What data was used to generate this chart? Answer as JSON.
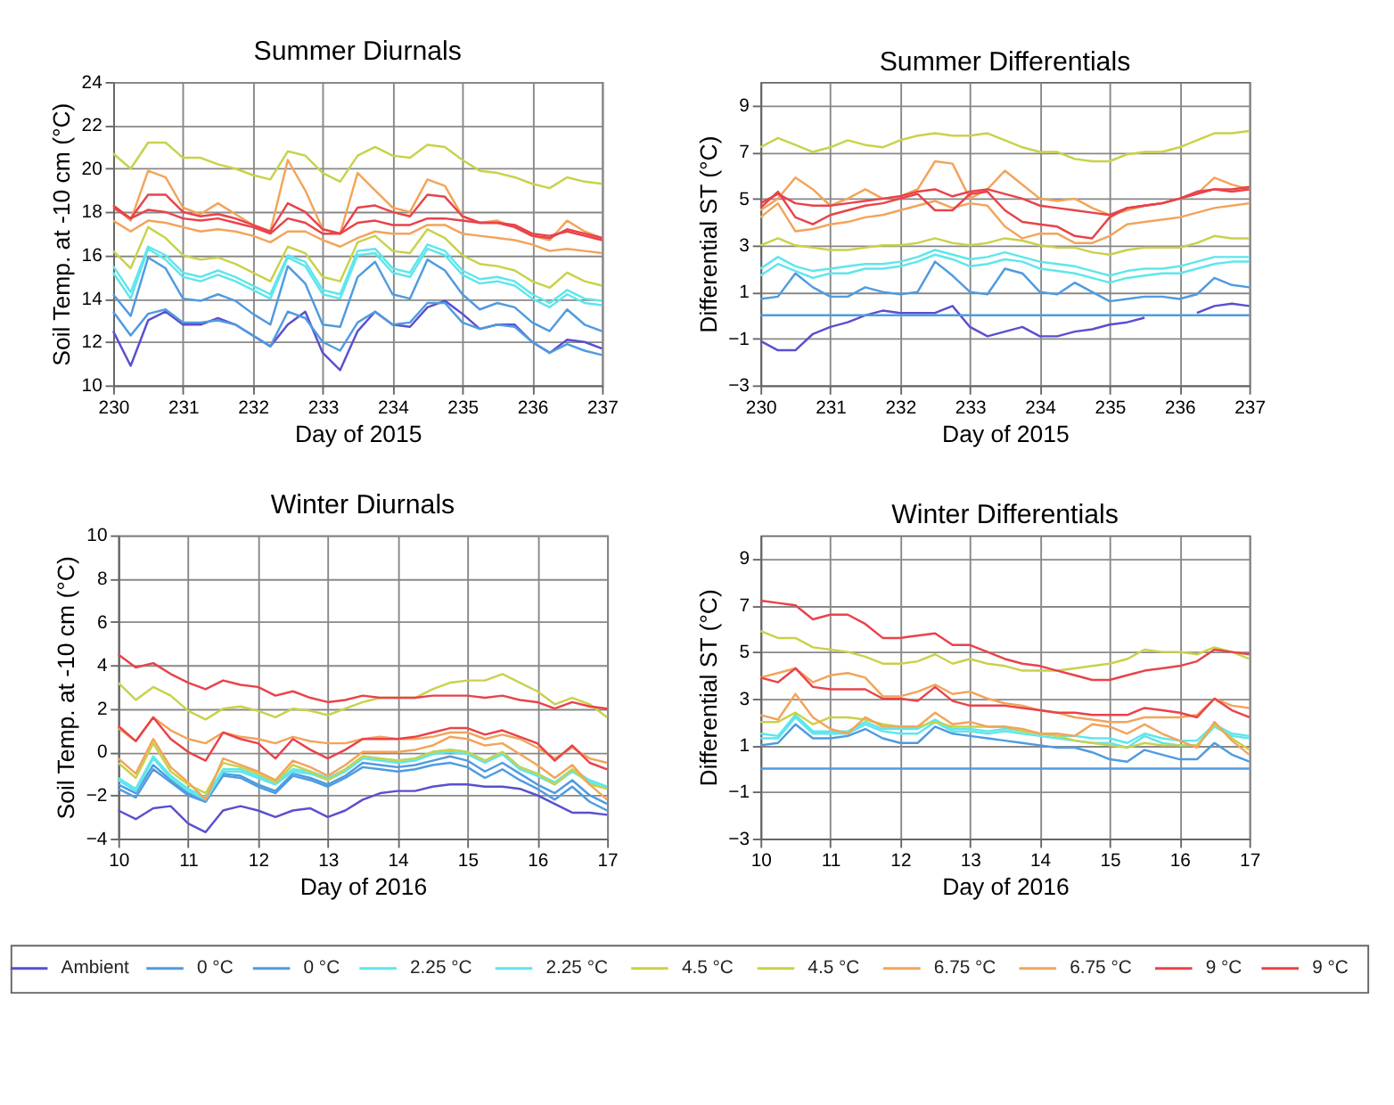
{
  "chart_data": [
    {
      "type": "line",
      "title": "Summer Diurnals",
      "xlabel": "Day of 2015",
      "ylabel": "Soil Temp. at -10 cm (°C)",
      "x": [
        230,
        230.25,
        230.5,
        230.75,
        231,
        231.25,
        231.5,
        231.75,
        232,
        232.25,
        232.5,
        232.75,
        233,
        233.25,
        233.5,
        233.75,
        234,
        234.25,
        234.5,
        234.75,
        235,
        235.25,
        235.5,
        235.75,
        236,
        236.25,
        236.5,
        236.75,
        237
      ],
      "xlim": [
        230,
        237
      ],
      "xticks": [
        230,
        231,
        232,
        233,
        234,
        235,
        236,
        237
      ],
      "ylim": [
        10,
        24
      ],
      "yticks": [
        10,
        12,
        14,
        16,
        18,
        20,
        22,
        24
      ],
      "grid": true,
      "legend": "bottom",
      "series": [
        {
          "name": "Ambient",
          "color": "#5a4fcf",
          "values": [
            12.5,
            10.9,
            13.0,
            13.4,
            12.8,
            12.8,
            13.1,
            12.8,
            12.3,
            11.8,
            12.8,
            13.4,
            11.5,
            10.7,
            12.5,
            13.4,
            12.8,
            12.7,
            13.6,
            13.9,
            13.3,
            12.6,
            12.8,
            12.8,
            12.0,
            11.5,
            12.1,
            12.0,
            11.7
          ]
        },
        {
          "name": "0 °C",
          "color": "#4f9be0",
          "values": [
            13.4,
            12.3,
            13.3,
            13.5,
            12.9,
            12.9,
            13.0,
            12.8,
            12.3,
            11.8,
            13.4,
            13.1,
            12.0,
            11.6,
            12.9,
            13.4,
            12.8,
            12.9,
            13.8,
            13.8,
            12.9,
            12.6,
            12.8,
            12.7,
            12.0,
            11.5,
            11.9,
            11.6,
            11.4
          ]
        },
        {
          "name": "0 °C",
          "color": "#4f9be0",
          "values": [
            14.2,
            13.2,
            15.9,
            15.4,
            14.0,
            13.9,
            14.2,
            13.9,
            13.3,
            12.8,
            15.5,
            14.7,
            12.8,
            12.7,
            15.0,
            15.7,
            14.2,
            14.0,
            15.8,
            15.3,
            14.2,
            13.5,
            13.8,
            13.6,
            12.9,
            12.5,
            13.5,
            12.8,
            12.5
          ]
        },
        {
          "name": "2.25 °C",
          "color": "#5ee6ec",
          "values": [
            15.2,
            14.0,
            16.3,
            15.8,
            15.0,
            14.8,
            15.1,
            14.8,
            14.4,
            14.0,
            15.9,
            15.5,
            14.2,
            14.0,
            16.0,
            16.1,
            15.2,
            15.0,
            16.3,
            16.0,
            15.1,
            14.7,
            14.8,
            14.6,
            14.0,
            13.6,
            14.2,
            13.8,
            13.7
          ]
        },
        {
          "name": "2.25 °C",
          "color": "#5ee6ec",
          "values": [
            15.5,
            14.3,
            16.4,
            16.0,
            15.2,
            15.0,
            15.3,
            15.0,
            14.6,
            14.2,
            16.0,
            15.7,
            14.4,
            14.2,
            16.2,
            16.3,
            15.4,
            15.2,
            16.5,
            16.2,
            15.3,
            14.9,
            15.0,
            14.8,
            14.2,
            13.8,
            14.4,
            14.0,
            13.9
          ]
        },
        {
          "name": "4.5 °C",
          "color": "#c8d24a",
          "values": [
            16.2,
            15.4,
            17.3,
            16.8,
            16.0,
            15.8,
            15.9,
            15.6,
            15.2,
            14.8,
            16.4,
            16.1,
            15.0,
            14.8,
            16.6,
            16.9,
            16.2,
            16.1,
            17.2,
            16.8,
            16.0,
            15.6,
            15.5,
            15.3,
            14.8,
            14.5,
            15.2,
            14.8,
            14.6
          ]
        },
        {
          "name": "4.5 °C",
          "color": "#c8d24a",
          "values": [
            20.7,
            20.0,
            21.2,
            21.2,
            20.5,
            20.5,
            20.2,
            20.0,
            19.7,
            19.5,
            20.8,
            20.6,
            19.8,
            19.4,
            20.6,
            21.0,
            20.6,
            20.5,
            21.1,
            21.0,
            20.4,
            19.9,
            19.8,
            19.6,
            19.3,
            19.1,
            19.6,
            19.4,
            19.3
          ]
        },
        {
          "name": "6.75 °C",
          "color": "#f2a45a",
          "values": [
            17.6,
            17.1,
            17.6,
            17.5,
            17.3,
            17.1,
            17.2,
            17.1,
            16.9,
            16.6,
            17.1,
            17.1,
            16.7,
            16.4,
            16.8,
            17.1,
            17.0,
            17.0,
            17.4,
            17.4,
            17.0,
            16.9,
            16.8,
            16.7,
            16.5,
            16.2,
            16.3,
            16.2,
            16.1
          ]
        },
        {
          "name": "6.75 °C",
          "color": "#f2a45a",
          "values": [
            18.3,
            17.6,
            19.9,
            19.6,
            18.2,
            17.9,
            18.4,
            17.9,
            17.4,
            17.1,
            20.4,
            19.0,
            17.2,
            17.0,
            19.8,
            19.0,
            18.2,
            18.0,
            19.5,
            19.2,
            17.8,
            17.5,
            17.6,
            17.3,
            16.9,
            16.7,
            17.6,
            17.1,
            16.8
          ]
        },
        {
          "name": "9 °C",
          "color": "#e8434a",
          "values": [
            18.3,
            17.7,
            18.8,
            18.8,
            18.0,
            17.8,
            17.9,
            17.7,
            17.4,
            17.1,
            18.4,
            18.0,
            17.2,
            17.0,
            18.2,
            18.3,
            18.0,
            17.8,
            18.8,
            18.7,
            17.8,
            17.5,
            17.5,
            17.3,
            16.9,
            16.8,
            17.2,
            17.0,
            16.8
          ]
        },
        {
          "name": "9 °C",
          "color": "#e8434a",
          "values": [
            18.2,
            17.7,
            18.1,
            18.0,
            17.7,
            17.6,
            17.7,
            17.5,
            17.3,
            17.0,
            17.7,
            17.5,
            17.0,
            17.0,
            17.5,
            17.6,
            17.4,
            17.4,
            17.7,
            17.7,
            17.6,
            17.5,
            17.5,
            17.4,
            17.0,
            16.9,
            17.1,
            16.9,
            16.7
          ]
        }
      ]
    },
    {
      "type": "line",
      "title": "Summer Differentials",
      "xlabel": "Day of 2015",
      "ylabel": "Differential ST (°C)",
      "x": [
        230,
        230.25,
        230.5,
        230.75,
        231,
        231.25,
        231.5,
        231.75,
        232,
        232.25,
        232.5,
        232.75,
        233,
        233.25,
        233.5,
        233.75,
        234,
        234.25,
        234.5,
        234.75,
        235,
        235.25,
        235.5,
        235.75,
        236,
        236.25,
        236.5,
        236.75,
        237
      ],
      "xlim": [
        230,
        237
      ],
      "xticks": [
        230,
        231,
        232,
        233,
        234,
        235,
        236,
        237
      ],
      "ylim": [
        -3,
        10
      ],
      "yticks": [
        -3,
        -1,
        1,
        3,
        5,
        7,
        9
      ],
      "grid": true,
      "series": [
        {
          "color": "#5a4fcf",
          "values": [
            -1.1,
            -1.5,
            -1.5,
            -0.8,
            -0.5,
            -0.3,
            0.0,
            0.2,
            0.1,
            0.1,
            0.1,
            0.4,
            -0.5,
            -0.9,
            -0.7,
            -0.5,
            -0.9,
            -0.9,
            -0.7,
            -0.6,
            -0.4,
            -0.3,
            -0.1,
            null,
            null,
            0.1,
            0.4,
            0.5,
            0.4
          ]
        },
        {
          "color": "#4f9be0",
          "values": [
            0,
            0,
            0,
            0,
            0,
            0,
            0,
            0,
            0,
            0,
            0,
            0,
            0,
            0,
            0,
            0,
            0,
            0,
            0,
            0,
            0,
            0,
            0,
            0,
            0,
            0,
            0,
            0,
            0
          ]
        },
        {
          "color": "#4f9be0",
          "values": [
            0.7,
            0.8,
            1.8,
            1.2,
            0.8,
            0.8,
            1.2,
            1.0,
            0.9,
            1.0,
            2.3,
            1.7,
            1.0,
            0.9,
            2.0,
            1.8,
            1.0,
            0.9,
            1.4,
            1.0,
            0.6,
            0.7,
            0.8,
            0.8,
            0.7,
            0.9,
            1.6,
            1.3,
            1.2
          ]
        },
        {
          "color": "#5ee6ec",
          "values": [
            1.7,
            2.2,
            1.9,
            1.6,
            1.8,
            1.8,
            2.0,
            2.0,
            2.1,
            2.3,
            2.6,
            2.4,
            2.1,
            2.2,
            2.4,
            2.3,
            2.0,
            1.9,
            1.8,
            1.6,
            1.4,
            1.6,
            1.7,
            1.8,
            1.8,
            2.0,
            2.2,
            2.3,
            2.3
          ]
        },
        {
          "color": "#5ee6ec",
          "values": [
            2.0,
            2.5,
            2.1,
            1.9,
            2.0,
            2.1,
            2.2,
            2.2,
            2.3,
            2.5,
            2.8,
            2.6,
            2.4,
            2.5,
            2.7,
            2.5,
            2.3,
            2.2,
            2.1,
            1.9,
            1.7,
            1.9,
            2.0,
            2.0,
            2.1,
            2.3,
            2.5,
            2.5,
            2.5
          ]
        },
        {
          "color": "#c8d24a",
          "values": [
            3.0,
            3.3,
            3.0,
            2.9,
            2.8,
            2.8,
            2.9,
            3.0,
            3.0,
            3.1,
            3.3,
            3.1,
            3.0,
            3.1,
            3.3,
            3.2,
            3.0,
            2.9,
            2.9,
            2.7,
            2.6,
            2.8,
            2.9,
            2.9,
            2.9,
            3.1,
            3.4,
            3.3,
            3.3
          ]
        },
        {
          "color": "#c8d24a",
          "values": [
            7.2,
            7.6,
            7.3,
            7.0,
            7.2,
            7.5,
            7.3,
            7.2,
            7.5,
            7.7,
            7.8,
            7.7,
            7.7,
            7.8,
            7.5,
            7.2,
            7.0,
            7.0,
            6.7,
            6.6,
            6.6,
            6.9,
            7.0,
            7.0,
            7.2,
            7.5,
            7.8,
            7.8,
            7.9
          ]
        },
        {
          "color": "#f2a45a",
          "values": [
            4.2,
            4.8,
            3.6,
            3.7,
            3.9,
            4.0,
            4.2,
            4.3,
            4.5,
            4.7,
            4.9,
            4.6,
            4.8,
            4.7,
            3.8,
            3.3,
            3.5,
            3.5,
            3.1,
            3.1,
            3.4,
            3.9,
            4.0,
            4.1,
            4.2,
            4.4,
            4.6,
            4.7,
            4.8
          ]
        },
        {
          "color": "#f2a45a",
          "values": [
            4.5,
            5.0,
            5.9,
            5.4,
            4.7,
            5.0,
            5.4,
            5.0,
            5.1,
            5.4,
            6.6,
            6.5,
            5.0,
            5.4,
            6.2,
            5.6,
            5.0,
            4.9,
            5.0,
            4.6,
            4.3,
            4.5,
            4.7,
            4.8,
            5.0,
            5.2,
            5.9,
            5.6,
            5.4
          ]
        },
        {
          "color": "#e8434a",
          "values": [
            4.6,
            5.3,
            4.2,
            3.9,
            4.3,
            4.5,
            4.7,
            4.8,
            5.0,
            5.2,
            4.5,
            4.5,
            5.2,
            5.3,
            4.5,
            4.0,
            3.9,
            3.8,
            3.4,
            3.3,
            4.2,
            4.6,
            4.7,
            4.8,
            5.0,
            5.3,
            5.4,
            5.4,
            5.5
          ]
        },
        {
          "color": "#e8434a",
          "values": [
            4.8,
            5.2,
            4.8,
            4.7,
            4.7,
            4.8,
            4.9,
            5.0,
            5.1,
            5.3,
            5.4,
            5.1,
            5.3,
            5.4,
            5.2,
            5.0,
            4.7,
            4.6,
            4.5,
            4.4,
            4.3,
            4.6,
            4.7,
            4.8,
            5.0,
            5.2,
            5.4,
            5.3,
            5.4
          ]
        }
      ]
    },
    {
      "type": "line",
      "title": "Winter Diurnals",
      "xlabel": "Day of 2016",
      "ylabel": "Soil Temp. at -10 cm (°C)",
      "x": [
        10,
        10.25,
        10.5,
        10.75,
        11,
        11.25,
        11.5,
        11.75,
        12,
        12.25,
        12.5,
        12.75,
        13,
        13.25,
        13.5,
        13.75,
        14,
        14.25,
        14.5,
        14.75,
        15,
        15.25,
        15.5,
        15.75,
        16,
        16.25,
        16.5,
        16.75,
        17
      ],
      "xlim": [
        10,
        17
      ],
      "xticks": [
        10,
        11,
        12,
        13,
        14,
        15,
        16,
        17
      ],
      "ylim": [
        -4,
        10
      ],
      "yticks": [
        -4,
        -2,
        0,
        2,
        4,
        6,
        8,
        10
      ],
      "grid": true,
      "series": [
        {
          "color": "#5a4fcf",
          "values": [
            -2.7,
            -3.1,
            -2.6,
            -2.5,
            -3.3,
            -3.7,
            -2.7,
            -2.5,
            -2.7,
            -3.0,
            -2.7,
            -2.6,
            -3.0,
            -2.7,
            -2.2,
            -1.9,
            -1.8,
            -1.8,
            -1.6,
            -1.5,
            -1.5,
            -1.6,
            -1.6,
            -1.7,
            -2.0,
            -2.4,
            -2.8,
            -2.8,
            -2.9
          ]
        },
        {
          "color": "#4f9be0",
          "values": [
            -1.7,
            -2.1,
            -0.8,
            -1.4,
            -2.0,
            -2.3,
            -1.1,
            -1.2,
            -1.6,
            -1.9,
            -1.1,
            -1.3,
            -1.6,
            -1.2,
            -0.7,
            -0.8,
            -0.9,
            -0.8,
            -0.6,
            -0.5,
            -0.7,
            -1.2,
            -0.8,
            -1.3,
            -1.7,
            -2.2,
            -1.6,
            -2.3,
            -2.7
          ]
        },
        {
          "color": "#4f9be0",
          "values": [
            -1.5,
            -1.9,
            -0.6,
            -1.3,
            -1.9,
            -2.2,
            -1.0,
            -1.1,
            -1.5,
            -1.8,
            -1.0,
            -1.2,
            -1.5,
            -1.1,
            -0.5,
            -0.6,
            -0.7,
            -0.6,
            -0.4,
            -0.2,
            -0.4,
            -0.9,
            -0.5,
            -1.0,
            -1.5,
            -1.9,
            -1.3,
            -2.0,
            -2.4
          ]
        },
        {
          "color": "#5ee6ec",
          "values": [
            -1.3,
            -1.8,
            -0.3,
            -1.2,
            -1.8,
            -2.2,
            -0.9,
            -0.9,
            -1.2,
            -1.5,
            -0.9,
            -1.0,
            -1.3,
            -0.9,
            -0.3,
            -0.4,
            -0.5,
            -0.4,
            -0.1,
            0.0,
            -0.1,
            -0.5,
            -0.1,
            -0.8,
            -1.1,
            -1.5,
            -0.9,
            -1.4,
            -1.7
          ]
        },
        {
          "color": "#5ee6ec",
          "values": [
            -1.2,
            -1.7,
            -0.2,
            -1.1,
            -1.7,
            -2.1,
            -0.8,
            -0.8,
            -1.1,
            -1.4,
            -0.8,
            -0.9,
            -1.2,
            -0.8,
            -0.2,
            -0.3,
            -0.4,
            -0.3,
            0.0,
            0.1,
            0.0,
            -0.4,
            0.0,
            -0.7,
            -1.0,
            -1.4,
            -0.8,
            -1.3,
            -1.6
          ]
        },
        {
          "color": "#c8d24a",
          "values": [
            -0.5,
            -1.2,
            0.4,
            -0.9,
            -1.5,
            -1.9,
            -0.5,
            -0.7,
            -1.0,
            -1.4,
            -0.6,
            -0.9,
            -1.3,
            -0.8,
            -0.2,
            -0.3,
            -0.4,
            -0.3,
            0.0,
            0.1,
            0.0,
            -0.4,
            0.0,
            -0.7,
            -1.0,
            -1.5,
            -0.8,
            -1.5,
            -1.7
          ]
        },
        {
          "color": "#c8d24a",
          "values": [
            3.2,
            2.4,
            3.0,
            2.6,
            1.9,
            1.5,
            2.0,
            2.1,
            1.9,
            1.6,
            2.0,
            1.9,
            1.7,
            2.0,
            2.3,
            2.5,
            2.5,
            2.5,
            2.9,
            3.2,
            3.3,
            3.3,
            3.6,
            3.2,
            2.8,
            2.2,
            2.5,
            2.2,
            1.6
          ]
        },
        {
          "color": "#f2a45a",
          "values": [
            -0.3,
            -1.0,
            0.6,
            -0.7,
            -1.4,
            -2.2,
            -0.3,
            -0.6,
            -0.9,
            -1.3,
            -0.4,
            -0.7,
            -1.1,
            -0.6,
            0.0,
            0.0,
            0.0,
            0.1,
            0.3,
            0.7,
            0.6,
            0.3,
            0.4,
            -0.1,
            -0.6,
            -1.2,
            -0.6,
            -1.5,
            -2.2
          ]
        },
        {
          "color": "#f2a45a",
          "values": [
            1.1,
            0.5,
            1.6,
            1.0,
            0.6,
            0.4,
            0.9,
            0.7,
            0.6,
            0.4,
            0.7,
            0.5,
            0.4,
            0.4,
            0.6,
            0.7,
            0.6,
            0.6,
            0.7,
            0.9,
            0.9,
            0.6,
            0.8,
            0.6,
            0.2,
            -0.3,
            0.2,
            -0.3,
            -0.5
          ]
        },
        {
          "color": "#e8434a",
          "values": [
            1.2,
            0.5,
            1.6,
            0.6,
            0.0,
            -0.4,
            0.9,
            0.6,
            0.4,
            -0.3,
            0.6,
            0.1,
            -0.3,
            0.1,
            0.6,
            0.6,
            0.6,
            0.7,
            0.9,
            1.1,
            1.1,
            0.8,
            1.0,
            0.7,
            0.4,
            -0.4,
            0.3,
            -0.5,
            -0.8
          ]
        },
        {
          "color": "#e8434a",
          "values": [
            4.5,
            3.9,
            4.1,
            3.6,
            3.2,
            2.9,
            3.3,
            3.1,
            3.0,
            2.6,
            2.8,
            2.5,
            2.3,
            2.4,
            2.6,
            2.5,
            2.5,
            2.5,
            2.6,
            2.6,
            2.6,
            2.5,
            2.6,
            2.4,
            2.3,
            2.0,
            2.3,
            2.1,
            2.0
          ]
        }
      ]
    },
    {
      "type": "line",
      "title": "Winter Differentials",
      "xlabel": "Day of 2016",
      "ylabel": "Differential ST (°C)",
      "x": [
        10,
        10.25,
        10.5,
        10.75,
        11,
        11.25,
        11.5,
        11.75,
        12,
        12.25,
        12.5,
        12.75,
        13,
        13.25,
        13.5,
        13.75,
        14,
        14.25,
        14.5,
        14.75,
        15,
        15.25,
        15.5,
        15.75,
        16,
        16.25,
        16.5,
        16.75,
        17
      ],
      "xlim": [
        10,
        17
      ],
      "xticks": [
        10,
        11,
        12,
        13,
        14,
        15,
        16,
        17
      ],
      "ylim": [
        -3,
        10
      ],
      "yticks": [
        -3,
        -1,
        1,
        3,
        5,
        7,
        9
      ],
      "grid": true,
      "series": [
        {
          "color": "#4f9be0",
          "values": [
            0,
            0,
            0,
            0,
            0,
            0,
            0,
            0,
            0,
            0,
            0,
            0,
            0,
            0,
            0,
            0,
            0,
            0,
            0,
            0,
            0,
            0,
            0,
            0,
            0,
            0,
            0,
            0,
            0
          ]
        },
        {
          "color": "#4f9be0",
          "values": [
            1.0,
            1.1,
            1.9,
            1.3,
            1.3,
            1.4,
            1.7,
            1.3,
            1.1,
            1.1,
            1.8,
            1.5,
            1.4,
            1.3,
            1.2,
            1.1,
            1.0,
            0.9,
            0.9,
            0.7,
            0.4,
            0.3,
            0.8,
            0.6,
            0.4,
            0.4,
            1.1,
            0.6,
            0.3
          ]
        },
        {
          "color": "#5ee6ec",
          "values": [
            1.3,
            1.3,
            2.2,
            1.5,
            1.5,
            1.5,
            1.9,
            1.6,
            1.5,
            1.5,
            2.0,
            1.6,
            1.6,
            1.5,
            1.6,
            1.5,
            1.4,
            1.3,
            1.2,
            1.1,
            1.1,
            0.9,
            1.4,
            1.1,
            1.0,
            1.0,
            1.8,
            1.4,
            1.3
          ]
        },
        {
          "color": "#5ee6ec",
          "values": [
            1.5,
            1.4,
            2.3,
            1.6,
            1.6,
            1.6,
            2.0,
            1.7,
            1.7,
            1.7,
            2.1,
            1.7,
            1.7,
            1.6,
            1.7,
            1.6,
            1.5,
            1.4,
            1.4,
            1.3,
            1.3,
            1.1,
            1.5,
            1.3,
            1.2,
            1.2,
            1.9,
            1.5,
            1.4
          ]
        },
        {
          "color": "#c8d24a",
          "values": [
            2.0,
            2.0,
            2.4,
            1.9,
            2.2,
            2.2,
            2.1,
            1.9,
            1.8,
            1.8,
            2.0,
            1.8,
            1.8,
            1.8,
            1.8,
            1.6,
            1.5,
            1.4,
            1.2,
            1.1,
            1.0,
            0.9,
            1.1,
            1.0,
            1.0,
            1.0,
            1.9,
            1.3,
            0.8
          ]
        },
        {
          "color": "#c8d24a",
          "values": [
            5.9,
            5.6,
            5.6,
            5.2,
            5.1,
            5.0,
            4.8,
            4.5,
            4.5,
            4.6,
            4.9,
            4.5,
            4.7,
            4.5,
            4.4,
            4.2,
            4.2,
            4.2,
            4.3,
            4.4,
            4.5,
            4.7,
            5.1,
            5.0,
            5.0,
            4.9,
            5.2,
            5.0,
            4.7
          ]
        },
        {
          "color": "#f2a45a",
          "values": [
            2.3,
            2.1,
            3.2,
            2.2,
            1.7,
            1.5,
            2.2,
            1.8,
            1.8,
            1.8,
            2.4,
            1.9,
            2.0,
            1.8,
            1.8,
            1.7,
            1.5,
            1.5,
            1.4,
            1.9,
            1.8,
            1.5,
            1.9,
            1.5,
            1.2,
            0.9,
            2.0,
            1.2,
            0.6
          ]
        },
        {
          "color": "#f2a45a",
          "values": [
            3.9,
            4.1,
            4.3,
            3.7,
            4.0,
            4.1,
            3.9,
            3.1,
            3.1,
            3.3,
            3.6,
            3.2,
            3.3,
            3.0,
            2.8,
            2.7,
            2.5,
            2.4,
            2.2,
            2.1,
            2.0,
            2.0,
            2.2,
            2.2,
            2.2,
            2.3,
            3.0,
            2.7,
            2.6
          ]
        },
        {
          "color": "#e8434a",
          "values": [
            3.9,
            3.7,
            4.3,
            3.5,
            3.4,
            3.4,
            3.4,
            3.0,
            3.0,
            2.9,
            3.5,
            2.9,
            2.7,
            2.7,
            2.7,
            2.6,
            2.5,
            2.4,
            2.4,
            2.3,
            2.3,
            2.3,
            2.6,
            2.5,
            2.4,
            2.2,
            3.0,
            2.5,
            2.2
          ]
        },
        {
          "color": "#e8434a",
          "values": [
            7.2,
            7.1,
            7.0,
            6.4,
            6.6,
            6.6,
            6.2,
            5.6,
            5.6,
            5.7,
            5.8,
            5.3,
            5.3,
            5.0,
            4.7,
            4.5,
            4.4,
            4.2,
            4.0,
            3.8,
            3.8,
            4.0,
            4.2,
            4.3,
            4.4,
            4.6,
            5.1,
            5.0,
            4.9
          ]
        }
      ]
    }
  ]
}
